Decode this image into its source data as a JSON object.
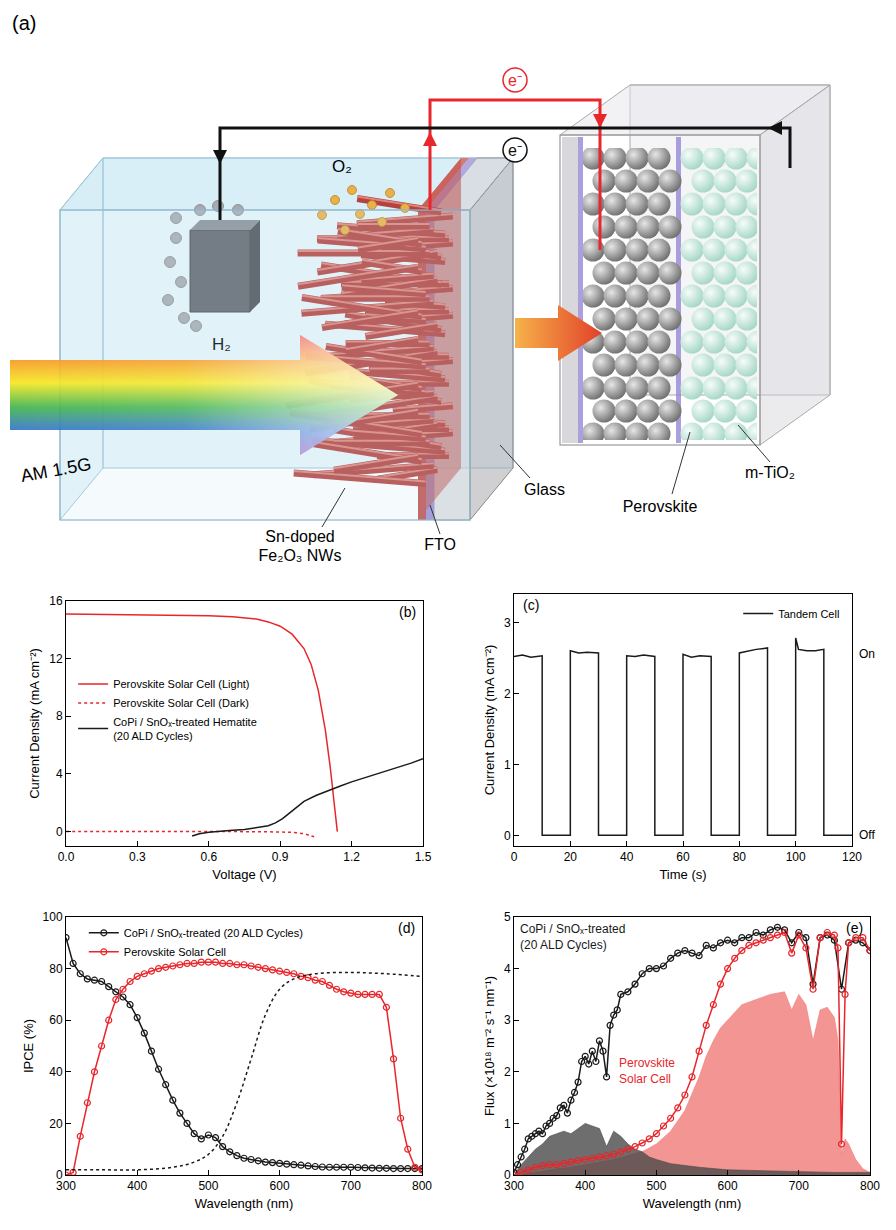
{
  "diagram": {
    "panel_label": "(a)",
    "electron_labels": [
      "e⁻",
      "e⁻"
    ],
    "gas_labels": {
      "oxygen": "O₂",
      "hydrogen": "H₂"
    },
    "light": "AM 1.5G",
    "labels": {
      "nanowires": "Sn-doped Fe₂O₃ NWs",
      "fto": "FTO",
      "glass": "Glass",
      "tio2": "m-TiO₂",
      "perovskite": "Perovskite"
    }
  },
  "chart_data": [
    {
      "type": "line",
      "panel_label": "(b)",
      "x_label": "Voltage (V)",
      "y_label": "Current Density (mA cm⁻²)",
      "xlim": [
        0,
        1.5
      ],
      "xticks": [
        {
          "value": 0,
          "label": "0.0"
        },
        0.3,
        0.6,
        0.9,
        1.2,
        1.5
      ],
      "ylim": [
        -1,
        16
      ],
      "yticks": [
        0,
        4,
        8,
        12,
        16
      ],
      "grid": false,
      "legend": "left",
      "series": [
        {
          "name": "Perovskite Solar Cell (Light)",
          "color": "#e8262b",
          "line_style": "solid",
          "x": [
            0,
            0.1,
            0.2,
            0.3,
            0.4,
            0.5,
            0.6,
            0.7,
            0.8,
            0.85,
            0.9,
            0.95,
            1.0,
            1.03,
            1.06,
            1.09,
            1.11,
            1.13,
            1.14
          ],
          "values": [
            15.1,
            15.08,
            15.06,
            15.04,
            15.02,
            15.0,
            14.97,
            14.9,
            14.75,
            14.55,
            14.25,
            13.7,
            12.7,
            11.6,
            9.8,
            7,
            4.5,
            1.5,
            0
          ]
        },
        {
          "name": "Perovskite Solar Cell (Dark)",
          "color": "#e8262b",
          "line_style": "dotted",
          "x": [
            0,
            0.2,
            0.4,
            0.6,
            0.7,
            0.8,
            0.9,
            0.95,
            1.0,
            1.03,
            1.05
          ],
          "values": [
            0,
            0,
            0,
            0,
            0,
            -0.01,
            -0.03,
            -0.06,
            -0.15,
            -0.3,
            -0.4
          ]
        },
        {
          "name": "CoPi / SnOₓ-treated Hematite (20 ALD Cycles)",
          "color": "#1a1a1a",
          "line_style": "solid",
          "x": [
            0.53,
            0.56,
            0.6,
            0.65,
            0.7,
            0.75,
            0.8,
            0.85,
            0.88,
            0.91,
            0.94,
            0.97,
            1.0,
            1.05,
            1.1,
            1.15,
            1.2,
            1.25,
            1.3,
            1.35,
            1.4,
            1.45,
            1.5
          ],
          "values": [
            -0.3,
            -0.15,
            -0.05,
            0.05,
            0.1,
            0.15,
            0.25,
            0.4,
            0.6,
            0.9,
            1.3,
            1.7,
            2.1,
            2.5,
            2.85,
            3.15,
            3.45,
            3.7,
            3.95,
            4.2,
            4.45,
            4.75,
            5.05
          ]
        }
      ]
    },
    {
      "type": "line",
      "panel_label": "(c)",
      "x_label": "Time (s)",
      "y_label": "Current Density (mA cm⁻²)",
      "xlim": [
        0,
        120
      ],
      "xticks": [
        0,
        20,
        40,
        60,
        80,
        100,
        120
      ],
      "ylim": [
        -0.15,
        3.4
      ],
      "yticks": [
        0,
        1,
        2,
        3
      ],
      "grid": false,
      "legend": "upper right",
      "series": [
        {
          "name": "Tandem Cell",
          "color": "#1a1a1a",
          "line_style": "solid",
          "x": [
            0,
            3,
            6,
            10,
            10,
            20,
            20,
            23,
            26,
            30,
            30,
            40,
            40,
            43,
            46,
            50,
            50,
            60,
            60,
            63,
            66,
            70,
            70,
            80,
            80,
            83,
            86,
            90,
            90,
            100,
            100,
            101,
            104,
            107,
            110,
            110,
            120
          ],
          "values": [
            2.52,
            2.54,
            2.51,
            2.53,
            0,
            0,
            2.6,
            2.57,
            2.58,
            2.57,
            0,
            0,
            2.53,
            2.52,
            2.54,
            2.52,
            0,
            0,
            2.55,
            2.51,
            2.53,
            2.52,
            0,
            0,
            2.57,
            2.6,
            2.62,
            2.64,
            0,
            0,
            2.78,
            2.62,
            2.6,
            2.6,
            2.62,
            0,
            0
          ]
        }
      ],
      "annotations": [
        {
          "text": "On",
          "y": 2.55
        },
        {
          "text": "Off",
          "y": 0
        }
      ]
    },
    {
      "type": "line",
      "panel_label": "(d)",
      "x_label": "Wavelength (nm)",
      "y_label": "IPCE (%)",
      "xlim": [
        300,
        800
      ],
      "xticks": [
        300,
        400,
        500,
        600,
        700,
        800
      ],
      "ylim": [
        0,
        100
      ],
      "yticks": [
        0,
        20,
        40,
        60,
        80,
        100
      ],
      "grid": false,
      "legend": "upper left",
      "series": [
        {
          "name": "CoPi / SnOₓ-treated (20 ALD Cycles)",
          "color": "#1a1a1a",
          "line_style": "solid",
          "marker": "circle-open",
          "x": [
            300,
            310,
            320,
            330,
            340,
            350,
            360,
            370,
            380,
            390,
            400,
            410,
            420,
            430,
            440,
            450,
            460,
            470,
            480,
            490,
            500,
            510,
            520,
            530,
            540,
            550,
            560,
            570,
            580,
            590,
            600,
            610,
            620,
            630,
            640,
            650,
            660,
            670,
            680,
            690,
            700,
            710,
            720,
            730,
            740,
            750,
            760,
            770,
            780,
            790,
            800
          ],
          "values": [
            92,
            82,
            78,
            76,
            75.5,
            75,
            73,
            71,
            69,
            66,
            61,
            55,
            48,
            41,
            35,
            29,
            24,
            20,
            16,
            14,
            15.5,
            14.5,
            11,
            9,
            7.5,
            6.5,
            6,
            5.5,
            5,
            4.8,
            4.5,
            4.2,
            4,
            3.8,
            3.5,
            3.3,
            3.1,
            3,
            3,
            3,
            3,
            2.9,
            2.8,
            2.7,
            2.6,
            2.6,
            2.5,
            2.5,
            2.5,
            2.5,
            2.5
          ]
        },
        {
          "name": "Perovskite Solar Cell",
          "color": "#e8262b",
          "line_style": "solid",
          "marker": "circle-open",
          "x": [
            300,
            310,
            320,
            330,
            340,
            350,
            360,
            370,
            380,
            390,
            400,
            410,
            420,
            430,
            440,
            450,
            460,
            470,
            480,
            490,
            500,
            510,
            520,
            530,
            540,
            550,
            560,
            570,
            580,
            590,
            600,
            610,
            620,
            630,
            640,
            650,
            660,
            670,
            680,
            690,
            700,
            710,
            720,
            730,
            740,
            750,
            760,
            770,
            780,
            790,
            800
          ],
          "values": [
            0,
            1,
            15,
            28,
            40,
            50,
            60,
            68,
            72,
            75,
            77,
            78,
            79,
            80,
            80.5,
            81,
            81.5,
            82,
            82,
            82.5,
            82.5,
            82.5,
            82,
            82,
            81.5,
            81.5,
            81,
            80.5,
            80,
            79.5,
            79,
            78.5,
            78,
            77,
            76.5,
            75.5,
            75,
            73.5,
            72,
            71,
            70.5,
            70,
            70,
            70,
            70,
            65,
            45,
            22,
            10,
            3,
            2
          ]
        },
        {
          "color": "#1a1a1a",
          "line_style": "dotted",
          "x": [
            300,
            350,
            400,
            450,
            480,
            500,
            520,
            540,
            560,
            580,
            600,
            620,
            650,
            700,
            750,
            800
          ],
          "values": [
            2,
            2,
            2,
            3,
            5,
            8,
            15,
            28,
            45,
            62,
            72,
            76,
            78,
            78.5,
            78,
            77
          ]
        }
      ]
    },
    {
      "type": "line",
      "panel_label": "(e)",
      "x_label": "Wavelength (nm)",
      "y_label": "Flux (×10¹⁸ m⁻² s⁻¹ nm⁻¹)",
      "xlim": [
        300,
        800
      ],
      "xticks": [
        300,
        400,
        500,
        600,
        700,
        800
      ],
      "ylim": [
        0,
        5
      ],
      "yticks": [
        0,
        1,
        2,
        3,
        4,
        5
      ],
      "grid": false,
      "series": [
        {
          "type": "area",
          "color": "#f07a78",
          "x": [
            300,
            310,
            320,
            340,
            360,
            380,
            400,
            420,
            440,
            460,
            480,
            500,
            520,
            540,
            560,
            570,
            580,
            590,
            600,
            610,
            620,
            640,
            660,
            680,
            690,
            700,
            710,
            720,
            730,
            740,
            750,
            755,
            760,
            765,
            770,
            780,
            790,
            800
          ],
          "values": [
            0,
            0,
            0.03,
            0.08,
            0.12,
            0.15,
            0.2,
            0.25,
            0.3,
            0.38,
            0.45,
            0.6,
            0.85,
            1.25,
            1.9,
            2.3,
            2.6,
            2.85,
            3.0,
            3.15,
            3.3,
            3.4,
            3.5,
            3.55,
            3.2,
            3.5,
            3.3,
            2.6,
            3.2,
            3.25,
            3.05,
            2.6,
            0.4,
            0.7,
            0.6,
            0.3,
            0.12,
            0.05
          ]
        },
        {
          "type": "area",
          "color": "#4a4a4a",
          "x": [
            300,
            310,
            320,
            330,
            340,
            350,
            360,
            370,
            380,
            390,
            400,
            410,
            420,
            430,
            440,
            450,
            460,
            470,
            480,
            490,
            500,
            520,
            540,
            560,
            600,
            650,
            700,
            750,
            800
          ],
          "values": [
            0,
            0.2,
            0.35,
            0.5,
            0.6,
            0.75,
            0.8,
            0.85,
            0.8,
            0.9,
            1.0,
            0.95,
            0.9,
            0.55,
            0.85,
            0.75,
            0.6,
            0.5,
            0.45,
            0.35,
            0.3,
            0.22,
            0.18,
            0.15,
            0.1,
            0.08,
            0.06,
            0.05,
            0.05
          ]
        },
        {
          "color": "#1a1a1a",
          "line_style": "solid",
          "marker": "circle-open",
          "x": [
            300,
            305,
            310,
            315,
            320,
            325,
            330,
            335,
            340,
            345,
            350,
            355,
            360,
            365,
            370,
            375,
            380,
            385,
            390,
            395,
            400,
            405,
            410,
            415,
            420,
            425,
            430,
            435,
            440,
            445,
            450,
            460,
            470,
            480,
            490,
            500,
            510,
            520,
            530,
            540,
            550,
            560,
            570,
            580,
            590,
            600,
            610,
            620,
            630,
            640,
            650,
            660,
            670,
            680,
            690,
            700,
            710,
            720,
            730,
            740,
            750,
            760,
            770,
            780,
            790,
            800
          ],
          "values": [
            0.05,
            0.2,
            0.35,
            0.5,
            0.7,
            0.75,
            0.8,
            0.85,
            0.8,
            0.95,
            1.0,
            1.1,
            1.15,
            1.3,
            1.35,
            1.2,
            1.45,
            1.6,
            1.8,
            2.2,
            2.3,
            2.15,
            2.4,
            2.2,
            2.6,
            2.4,
            1.9,
            2.9,
            3.1,
            3.2,
            3.5,
            3.55,
            3.7,
            3.9,
            4.0,
            4.0,
            4.05,
            4.2,
            4.3,
            4.35,
            4.3,
            4.25,
            4.45,
            4.4,
            4.5,
            4.55,
            4.5,
            4.6,
            4.6,
            4.7,
            4.65,
            4.75,
            4.8,
            4.75,
            4.5,
            4.7,
            4.6,
            3.7,
            4.6,
            4.65,
            4.55,
            3.6,
            4.5,
            4.55,
            4.5,
            4.35
          ]
        },
        {
          "color": "#e8262b",
          "line_style": "solid",
          "marker": "circle-open",
          "x": [
            300,
            310,
            320,
            330,
            340,
            350,
            360,
            370,
            380,
            390,
            400,
            410,
            420,
            430,
            440,
            450,
            460,
            470,
            480,
            490,
            500,
            510,
            520,
            530,
            540,
            550,
            560,
            570,
            580,
            590,
            600,
            610,
            620,
            630,
            640,
            650,
            660,
            670,
            680,
            690,
            700,
            710,
            720,
            730,
            740,
            750,
            755,
            760,
            765,
            770,
            780,
            790,
            800
          ],
          "values": [
            0,
            0.05,
            0.1,
            0.15,
            0.18,
            0.2,
            0.2,
            0.22,
            0.25,
            0.28,
            0.3,
            0.32,
            0.35,
            0.37,
            0.4,
            0.45,
            0.5,
            0.55,
            0.62,
            0.7,
            0.8,
            0.95,
            1.1,
            1.3,
            1.55,
            1.9,
            2.4,
            2.9,
            3.3,
            3.7,
            4.0,
            4.2,
            4.35,
            4.45,
            4.5,
            4.55,
            4.6,
            4.65,
            4.7,
            4.3,
            4.65,
            4.4,
            3.6,
            4.6,
            4.7,
            4.65,
            4.4,
            0.6,
            3.5,
            4.5,
            4.6,
            4.6,
            4.35
          ]
        }
      ],
      "annotations": [
        {
          "text": "CoPi / SnOₓ-treated (20 ALD Cycles)",
          "x": 305,
          "y": 4.95,
          "color": "#1a1a1a"
        },
        {
          "text": "Perovskite Solar Cell",
          "x": 445,
          "y": 2.35,
          "color": "#e8262b"
        }
      ]
    }
  ]
}
